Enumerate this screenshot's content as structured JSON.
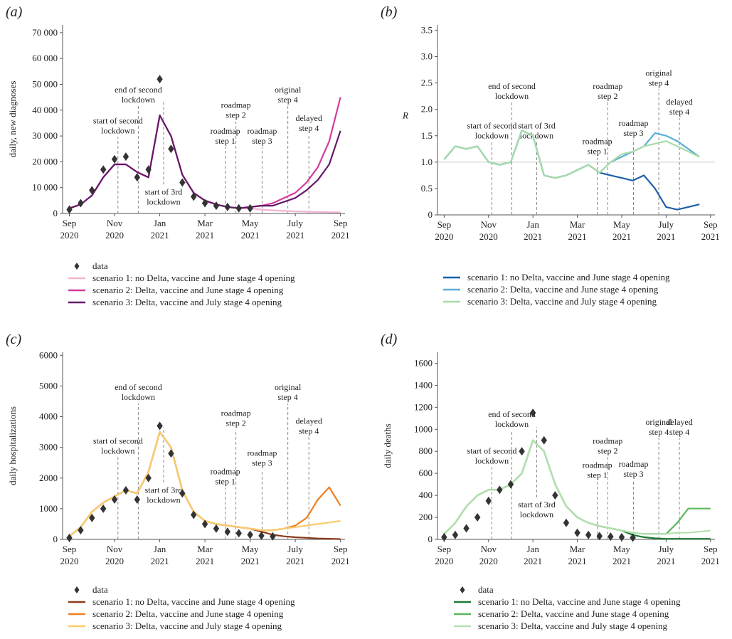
{
  "chart_data": [
    {
      "type": "line",
      "label": "(a)",
      "ylabel": "daily, new diagnoses",
      "x": [
        0,
        0.5,
        1,
        1.5,
        2,
        2.5,
        3,
        3.5,
        4,
        4.5,
        5,
        5.5,
        6,
        6.5,
        7,
        7.5,
        8,
        8.5,
        9,
        9.5,
        10,
        10.5,
        11,
        11.5,
        12
      ],
      "xlim": [
        -0.3,
        12.2
      ],
      "xticks": [
        {
          "value": 0,
          "label": "Sep 2020"
        },
        {
          "value": 2,
          "label": "Nov 2020"
        },
        {
          "value": 4,
          "label": "Jan 2021"
        },
        {
          "value": 6,
          "label": "Mar 2021"
        },
        {
          "value": 8,
          "label": "May 2021"
        },
        {
          "value": 10,
          "label": "July 2021"
        },
        {
          "value": 12,
          "label": "Sep 2021"
        }
      ],
      "ylim": [
        0,
        73000
      ],
      "yticks": [
        0,
        {
          "value": 10000,
          "label": "10 000"
        },
        {
          "value": 20000,
          "label": "20 000"
        },
        {
          "value": 30000,
          "label": "30 000"
        },
        {
          "value": 40000,
          "label": "40 000"
        },
        {
          "value": 50000,
          "label": "50 000"
        },
        {
          "value": 60000,
          "label": "60 000"
        },
        {
          "value": 70000,
          "label": "70 000"
        }
      ],
      "series": [
        {
          "name": "data",
          "type": "scatter",
          "color": "#333333",
          "values": [
            1500,
            4000,
            9000,
            17000,
            21000,
            22000,
            14000,
            17000,
            52000,
            25000,
            12000,
            6500,
            4000,
            3000,
            2500,
            2000,
            2000,
            null,
            null,
            null,
            null,
            null,
            null,
            null,
            null
          ]
        },
        {
          "name": "scenario 1: no Delta, vaccine and June stage 4 opening",
          "color": "#f2b3d0",
          "values": [
            2000,
            3500,
            7000,
            14000,
            19000,
            19000,
            16000,
            14000,
            38000,
            30000,
            15000,
            8000,
            5000,
            3500,
            2500,
            2000,
            2000,
            1500,
            1200,
            1000,
            800,
            700,
            600,
            500,
            400
          ]
        },
        {
          "name": "scenario 2: Delta, vaccine and June stage 4 opening",
          "color": "#d6399a",
          "values": [
            2000,
            3500,
            7000,
            14000,
            19000,
            19000,
            16000,
            14000,
            38000,
            30000,
            15000,
            8000,
            5000,
            3500,
            2500,
            2000,
            2500,
            3000,
            4000,
            6000,
            8000,
            12000,
            18000,
            28000,
            45000
          ]
        },
        {
          "name": "scenario 3: Delta, vaccine and July stage 4 opening",
          "color": "#651a6b",
          "values": [
            2000,
            3500,
            7000,
            14000,
            19000,
            19000,
            16000,
            14000,
            38000,
            30000,
            15000,
            8000,
            5000,
            3500,
            2500,
            2000,
            2500,
            3000,
            3000,
            4500,
            6000,
            9000,
            13000,
            19000,
            32000
          ]
        }
      ],
      "annotations": [
        {
          "x": 2.15,
          "y": 31000,
          "text": [
            "start of second",
            "lockdown"
          ]
        },
        {
          "x": 3.05,
          "y": 43000,
          "text": [
            "end of second",
            "lockdown"
          ]
        },
        {
          "x": 4.17,
          "y": 3500,
          "text": [
            "start of 3rd",
            "lockdown"
          ]
        },
        {
          "x": 6.9,
          "y": 27000,
          "text": [
            "roadmap",
            "step 1"
          ]
        },
        {
          "x": 7.37,
          "y": 37000,
          "text": [
            "roadmap",
            "step 2"
          ]
        },
        {
          "x": 8.53,
          "y": 27000,
          "text": [
            "roadmap",
            "step 3"
          ]
        },
        {
          "x": 9.67,
          "y": 43000,
          "text": [
            "original",
            "step 4"
          ]
        },
        {
          "x": 10.6,
          "y": 32000,
          "text": [
            "delayed",
            "step 4"
          ]
        }
      ]
    },
    {
      "type": "line",
      "label": "(b)",
      "ylabel": "R",
      "x": [
        0,
        0.5,
        1,
        1.5,
        2,
        2.5,
        3,
        3.5,
        4,
        4.5,
        5,
        5.5,
        6,
        6.5,
        7,
        7.5,
        8,
        8.5,
        9,
        9.5,
        10,
        10.5,
        11,
        11.5,
        12
      ],
      "xlim": [
        -0.3,
        12.2
      ],
      "xticks": [
        {
          "value": 0,
          "label": "Sep 2020"
        },
        {
          "value": 2,
          "label": "Nov 2020"
        },
        {
          "value": 4,
          "label": "Jan 2021"
        },
        {
          "value": 6,
          "label": "Mar 2021"
        },
        {
          "value": 8,
          "label": "May 2021"
        },
        {
          "value": 10,
          "label": "July 2021"
        },
        {
          "value": 12,
          "label": "Sep 2021"
        }
      ],
      "ylim": [
        0,
        3.6
      ],
      "yticks": [
        0,
        0.5,
        {
          "value": 1,
          "label": "1.0"
        },
        1.5,
        {
          "value": 2,
          "label": "2.0"
        },
        2.5,
        {
          "value": 3,
          "label": "3.0"
        },
        3.5
      ],
      "reference_line": 1,
      "series": [
        {
          "name": "scenario 1: no Delta, vaccine and June stage 4 opening",
          "color": "#1f5fa8",
          "values": [
            1.05,
            1.3,
            1.25,
            1.3,
            1.0,
            0.95,
            1.0,
            1.6,
            1.5,
            0.75,
            0.7,
            0.75,
            0.85,
            0.95,
            0.8,
            0.75,
            0.7,
            0.65,
            0.75,
            0.5,
            0.15,
            0.1,
            0.15,
            0.2,
            null
          ]
        },
        {
          "name": "scenario 2: Delta, vaccine and June stage 4 opening",
          "color": "#5aaed6",
          "values": [
            1.05,
            1.3,
            1.25,
            1.3,
            1.0,
            0.95,
            1.0,
            1.6,
            1.5,
            0.75,
            0.7,
            0.75,
            0.85,
            0.95,
            0.8,
            1.0,
            1.1,
            1.2,
            1.3,
            1.55,
            1.5,
            1.4,
            1.25,
            1.1,
            null
          ]
        },
        {
          "name": "scenario 3: Delta, vaccine and July stage 4 opening",
          "color": "#a8dba8",
          "values": [
            1.05,
            1.3,
            1.25,
            1.3,
            1.0,
            0.95,
            1.0,
            1.6,
            1.5,
            0.75,
            0.7,
            0.75,
            0.85,
            0.95,
            0.8,
            1.0,
            1.15,
            1.2,
            1.3,
            1.35,
            1.4,
            1.3,
            1.2,
            1.1,
            null
          ]
        }
      ],
      "annotations": [
        {
          "x": 2.15,
          "y": 1.45,
          "text": [
            "start of second",
            "lockdown"
          ]
        },
        {
          "x": 3.05,
          "y": 2.2,
          "text": [
            "end of second",
            "lockdown"
          ]
        },
        {
          "x": 4.17,
          "y": 1.45,
          "text": [
            "start of 3rd",
            "lockdown"
          ]
        },
        {
          "x": 6.9,
          "y": 1.15,
          "text": [
            "roadmap",
            "step 1"
          ]
        },
        {
          "x": 7.37,
          "y": 2.2,
          "text": [
            "roadmap",
            "step 2"
          ]
        },
        {
          "x": 8.53,
          "y": 1.5,
          "text": [
            "roadmap",
            "step 3"
          ]
        },
        {
          "x": 9.67,
          "y": 2.45,
          "text": [
            "original",
            "step 4"
          ]
        },
        {
          "x": 10.6,
          "y": 1.9,
          "text": [
            "delayed",
            "step 4"
          ]
        }
      ]
    },
    {
      "type": "line",
      "label": "(c)",
      "ylabel": "daily hospitalizations",
      "x": [
        0,
        0.5,
        1,
        1.5,
        2,
        2.5,
        3,
        3.5,
        4,
        4.5,
        5,
        5.5,
        6,
        6.5,
        7,
        7.5,
        8,
        8.5,
        9,
        9.5,
        10,
        10.5,
        11,
        11.5,
        12
      ],
      "xlim": [
        -0.3,
        12.2
      ],
      "xticks": [
        {
          "value": 0,
          "label": "Sep 2020"
        },
        {
          "value": 2,
          "label": "Nov 2020"
        },
        {
          "value": 4,
          "label": "Jan 2021"
        },
        {
          "value": 6,
          "label": "Mar 2021"
        },
        {
          "value": 8,
          "label": "May 2021"
        },
        {
          "value": 10,
          "label": "July 2021"
        },
        {
          "value": 12,
          "label": "Sep 2021"
        }
      ],
      "ylim": [
        0,
        6100
      ],
      "yticks": [
        0,
        1000,
        2000,
        3000,
        4000,
        5000,
        6000
      ],
      "series": [
        {
          "name": "data",
          "type": "scatter",
          "color": "#333333",
          "values": [
            50,
            300,
            700,
            1000,
            1300,
            1600,
            1300,
            2000,
            3700,
            2800,
            1500,
            800,
            500,
            350,
            250,
            200,
            150,
            120,
            100,
            null,
            null,
            null,
            null,
            null,
            null
          ]
        },
        {
          "name": "scenario 1: no Delta, vaccine and June stage 4 opening",
          "color": "#8b3a1a",
          "values": [
            100,
            400,
            900,
            1200,
            1400,
            1600,
            1500,
            2200,
            3500,
            3000,
            1600,
            900,
            600,
            500,
            450,
            400,
            350,
            250,
            150,
            100,
            70,
            50,
            30,
            20,
            10
          ]
        },
        {
          "name": "scenario 2: Delta, vaccine and June stage 4 opening",
          "color": "#f07f1e",
          "values": [
            100,
            400,
            900,
            1200,
            1400,
            1600,
            1500,
            2200,
            3500,
            3000,
            1600,
            900,
            600,
            500,
            450,
            400,
            350,
            300,
            300,
            350,
            450,
            700,
            1300,
            1700,
            1100
          ]
        },
        {
          "name": "scenario 3: Delta, vaccine and July stage 4 opening",
          "color": "#f9cc6b",
          "values": [
            100,
            400,
            900,
            1200,
            1400,
            1600,
            1500,
            2200,
            3500,
            3000,
            1600,
            900,
            600,
            500,
            450,
            400,
            350,
            300,
            300,
            350,
            400,
            450,
            500,
            550,
            600
          ]
        }
      ],
      "annotations": [
        {
          "x": 2.15,
          "y": 2800,
          "text": [
            "start of second",
            "lockdown"
          ]
        },
        {
          "x": 3.05,
          "y": 4550,
          "text": [
            "end of second",
            "lockdown"
          ]
        },
        {
          "x": 4.17,
          "y": 1200,
          "text": [
            "start of 3rd",
            "lockdown"
          ]
        },
        {
          "x": 6.9,
          "y": 1800,
          "text": [
            "roadmap",
            "step 1"
          ]
        },
        {
          "x": 7.37,
          "y": 3700,
          "text": [
            "roadmap",
            "step 2"
          ]
        },
        {
          "x": 8.53,
          "y": 2400,
          "text": [
            "roadmap",
            "step 3"
          ]
        },
        {
          "x": 9.67,
          "y": 4550,
          "text": [
            "original",
            "step 4"
          ]
        },
        {
          "x": 10.6,
          "y": 3450,
          "text": [
            "delayed",
            "step 4"
          ]
        }
      ]
    },
    {
      "type": "line",
      "label": "(d)",
      "ylabel": "daily deaths",
      "x": [
        0,
        0.5,
        1,
        1.5,
        2,
        2.5,
        3,
        3.5,
        4,
        4.5,
        5,
        5.5,
        6,
        6.5,
        7,
        7.5,
        8,
        8.5,
        9,
        9.5,
        10,
        10.5,
        11,
        11.5,
        12
      ],
      "xlim": [
        -0.3,
        12.2
      ],
      "xticks": [
        {
          "value": 0,
          "label": "Sep 2020"
        },
        {
          "value": 2,
          "label": "Nov 2020"
        },
        {
          "value": 4,
          "label": "Jan 2021"
        },
        {
          "value": 6,
          "label": "Mar 2021"
        },
        {
          "value": 8,
          "label": "May 2021"
        },
        {
          "value": 10,
          "label": "July 2021"
        },
        {
          "value": 12,
          "label": "Sep 2021"
        }
      ],
      "ylim": [
        0,
        1700
      ],
      "yticks": [
        0,
        200,
        400,
        600,
        800,
        1000,
        1200,
        1400,
        1600
      ],
      "series": [
        {
          "name": "data",
          "type": "scatter",
          "color": "#333333",
          "values": [
            20,
            40,
            100,
            200,
            350,
            450,
            500,
            800,
            1150,
            900,
            400,
            150,
            60,
            40,
            30,
            25,
            20,
            15,
            null,
            null,
            null,
            null,
            null,
            null,
            null
          ]
        },
        {
          "name": "scenario 1: no Delta, vaccine and June stage 4 opening",
          "color": "#1f7a34",
          "values": [
            50,
            150,
            300,
            400,
            450,
            450,
            500,
            600,
            900,
            800,
            500,
            300,
            200,
            150,
            120,
            100,
            80,
            40,
            20,
            10,
            5,
            5,
            5,
            5,
            5
          ]
        },
        {
          "name": "scenario 2: Delta, vaccine and June stage 4 opening",
          "color": "#5cb85c",
          "values": [
            50,
            150,
            300,
            400,
            450,
            450,
            500,
            600,
            900,
            800,
            500,
            300,
            200,
            150,
            120,
            100,
            80,
            60,
            50,
            50,
            50,
            150,
            280,
            280,
            280
          ]
        },
        {
          "name": "scenario 3: Delta, vaccine and July stage 4 opening",
          "color": "#b5e0b0",
          "values": [
            50,
            150,
            300,
            400,
            450,
            450,
            500,
            600,
            900,
            800,
            500,
            300,
            200,
            150,
            120,
            100,
            80,
            60,
            50,
            50,
            50,
            60,
            60,
            70,
            80
          ]
        }
      ],
      "annotations": [
        {
          "x": 2.15,
          "y": 690,
          "text": [
            "start of second",
            "lockdown"
          ]
        },
        {
          "x": 3.05,
          "y": 1020,
          "text": [
            "end of second",
            "lockdown"
          ]
        },
        {
          "x": 4.17,
          "y": 200,
          "text": [
            "start of 3rd",
            "lockdown"
          ]
        },
        {
          "x": 6.9,
          "y": 560,
          "text": [
            "roadmap",
            "step 1"
          ]
        },
        {
          "x": 7.37,
          "y": 780,
          "text": [
            "roadmap",
            "step 2"
          ]
        },
        {
          "x": 8.53,
          "y": 570,
          "text": [
            "roadmap",
            "step 3"
          ]
        },
        {
          "x": 9.67,
          "y": 950,
          "text": [
            "original",
            "step 4"
          ]
        },
        {
          "x": 10.6,
          "y": 950,
          "text": [
            "delayed",
            "step 4"
          ]
        }
      ]
    }
  ]
}
